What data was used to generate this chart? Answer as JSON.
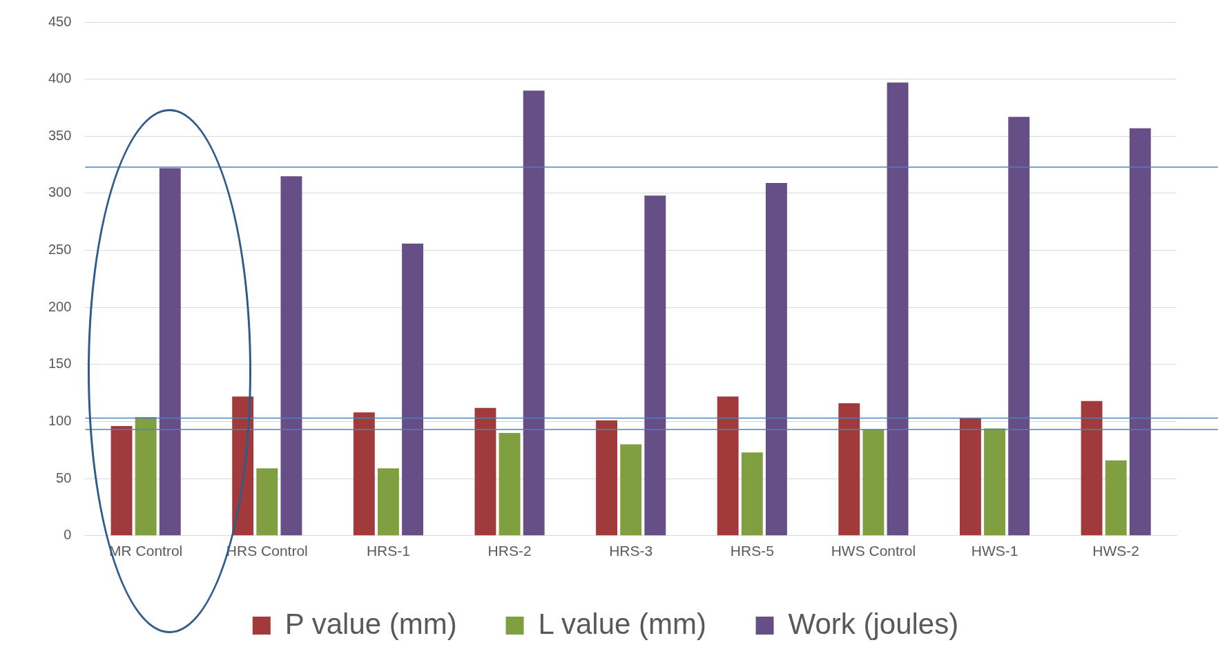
{
  "chart_data": {
    "type": "bar",
    "categories": [
      "MR Control",
      "HRS Control",
      "HRS-1",
      "HRS-2",
      "HRS-3",
      "HRS-5",
      "HWS Control",
      "HWS-1",
      "HWS-2"
    ],
    "series": [
      {
        "name": "P value (mm)",
        "color": "#a13a3b",
        "values": [
          96,
          122,
          108,
          112,
          101,
          122,
          116,
          103,
          118
        ]
      },
      {
        "name": "L value (mm)",
        "color": "#7f9f40",
        "values": [
          104,
          59,
          59,
          90,
          80,
          73,
          93,
          94,
          66
        ]
      },
      {
        "name": "Work (joules)",
        "color": "#654f86",
        "values": [
          322,
          315,
          256,
          390,
          298,
          309,
          397,
          367,
          357
        ]
      }
    ],
    "ylim": [
      0,
      450
    ],
    "yticks": [
      0,
      50,
      100,
      150,
      200,
      250,
      300,
      350,
      400,
      450
    ],
    "grid": "y",
    "legend": "bottom",
    "ref_lines": [
      {
        "axis": "y",
        "value": 323,
        "color": "#4f81bd"
      },
      {
        "axis": "y",
        "value": 103,
        "color": "#4f81bd"
      },
      {
        "axis": "y",
        "value": 93,
        "color": "#4f81bd"
      }
    ]
  }
}
